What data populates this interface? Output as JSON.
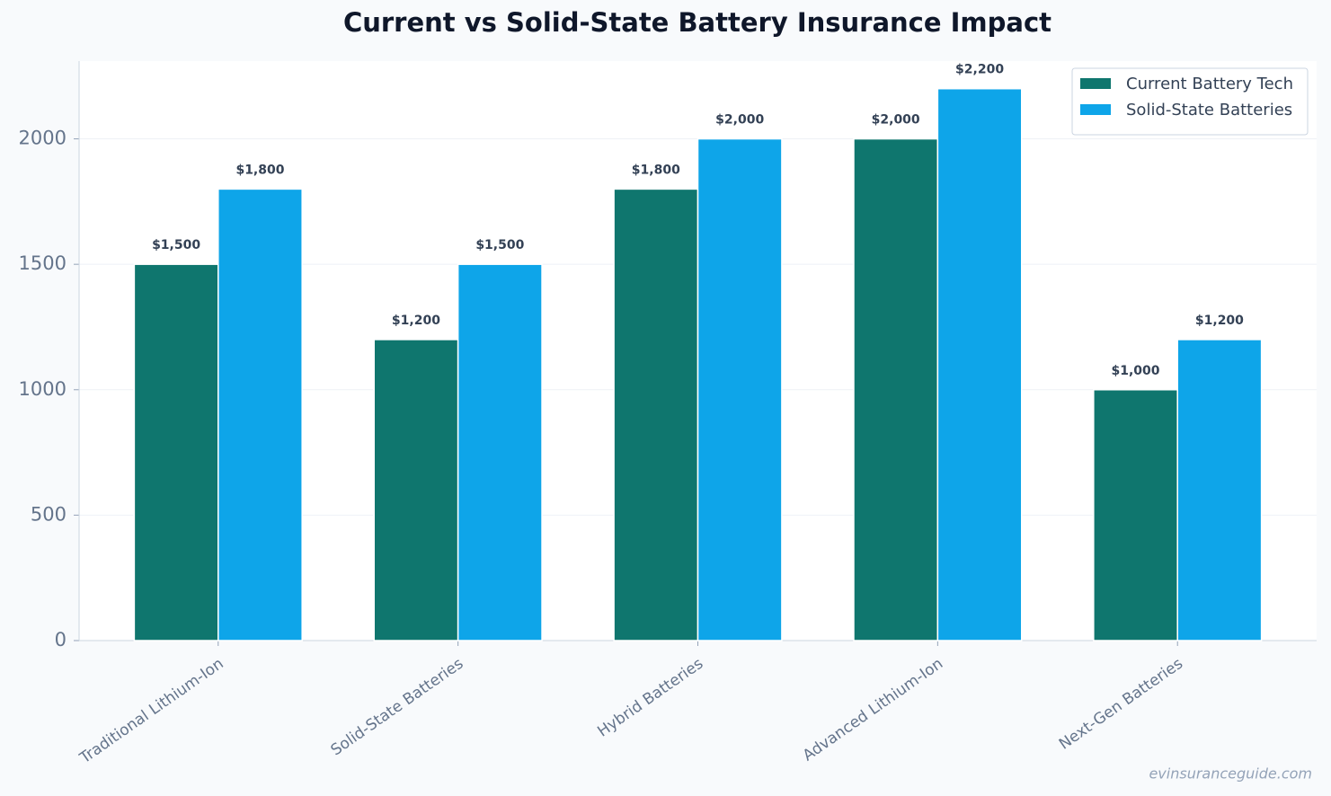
{
  "chart_data": {
    "type": "bar",
    "title": "Current vs Solid-State Battery Insurance Impact",
    "categories": [
      "Traditional Lithium-Ion",
      "Solid-State Batteries",
      "Hybrid Batteries",
      "Advanced Lithium-Ion",
      "Next-Gen Batteries"
    ],
    "series": [
      {
        "name": "Current Battery Tech",
        "color": "#0f766e",
        "values": [
          1500,
          1200,
          1800,
          2000,
          1000
        ],
        "value_labels": [
          "$1,500",
          "$1,200",
          "$1,800",
          "$2,000",
          "$1,000"
        ]
      },
      {
        "name": "Solid-State Batteries",
        "color": "#0ea5e9",
        "values": [
          1800,
          1500,
          2000,
          2200,
          1200
        ],
        "value_labels": [
          "$1,800",
          "$1,500",
          "$2,000",
          "$2,200",
          "$1,200"
        ]
      }
    ],
    "ylim": [
      0,
      2310
    ],
    "yticks": [
      0,
      500,
      1000,
      1500,
      2000
    ],
    "grid": true,
    "legend": "upper right",
    "watermark": "evinsuranceguide.com"
  }
}
